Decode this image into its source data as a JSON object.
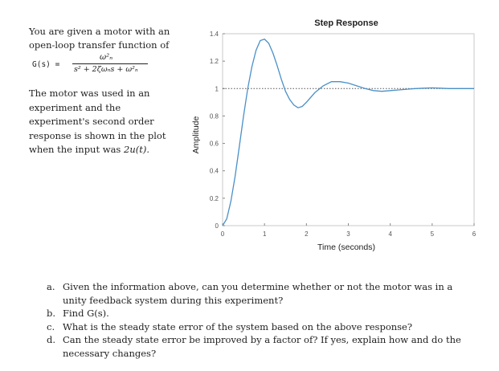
{
  "intro": {
    "line1": "You are given a motor with an",
    "line2": "open-loop transfer function of",
    "formula_lhs": "G(s) =",
    "formula_num": "ω²ₙ",
    "formula_den": "s² + 2ζωₙs + ω²ₙ",
    "para2_pre": "The motor was used in an experiment and the experiment's second order response is shown in the plot when the input was ",
    "para2_input": "2u(t).",
    "para2_post": ""
  },
  "chart_data": {
    "type": "line",
    "title": "Step Response",
    "xlabel": "Time (seconds)",
    "ylabel": "Amplitude",
    "xlim": [
      0,
      6
    ],
    "ylim": [
      0,
      1.4
    ],
    "xticks": [
      "0",
      "1",
      "2",
      "3",
      "4",
      "5",
      "6"
    ],
    "yticks": [
      "0",
      "0.2",
      "0.4",
      "0.6",
      "0.8",
      "1",
      "1.2",
      "1.4"
    ],
    "reference_line": 1,
    "color": "#4a90c8",
    "series": [
      {
        "x": [
          0,
          0.1,
          0.2,
          0.3,
          0.4,
          0.5,
          0.6,
          0.7,
          0.8,
          0.9,
          1.0,
          1.1,
          1.2,
          1.3,
          1.4,
          1.5,
          1.6,
          1.7,
          1.8,
          1.9,
          2.0,
          2.2,
          2.4,
          2.6,
          2.8,
          3.0,
          3.2,
          3.4,
          3.6,
          3.8,
          4.0,
          4.2,
          4.4,
          4.6,
          4.8,
          5.0,
          5.2,
          5.4,
          5.6,
          5.8,
          6.0
        ],
        "values": [
          0,
          0.05,
          0.18,
          0.36,
          0.58,
          0.8,
          1.0,
          1.16,
          1.28,
          1.35,
          1.36,
          1.33,
          1.26,
          1.17,
          1.07,
          0.98,
          0.92,
          0.88,
          0.86,
          0.87,
          0.9,
          0.97,
          1.02,
          1.05,
          1.05,
          1.04,
          1.02,
          1.0,
          0.985,
          0.98,
          0.985,
          0.99,
          0.995,
          1.0,
          1.003,
          1.005,
          1.003,
          1.0,
          1.0,
          1.0,
          1.0
        ]
      }
    ]
  },
  "questions": [
    {
      "marker": "a.",
      "text": "Given the information above, can you determine whether or not the motor was in a unity feedback system during this experiment?"
    },
    {
      "marker": "b.",
      "text": "Find G(s)."
    },
    {
      "marker": "c.",
      "text": "What is the steady state error of the system based on the above response?"
    },
    {
      "marker": "d.",
      "text": "Can the steady state error be improved by a factor of? If yes, explain how and do the necessary changes?"
    }
  ]
}
